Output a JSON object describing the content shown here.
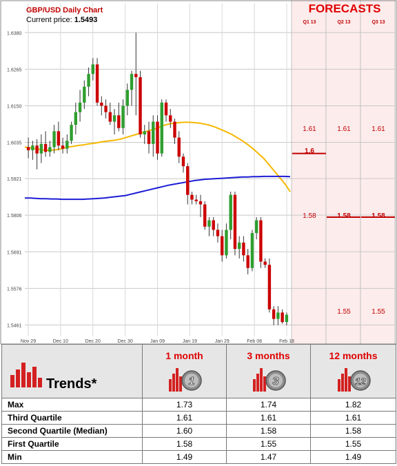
{
  "header": {
    "title": "GBP/USD Daily Chart",
    "current_price_label": "Current price:",
    "current_price_value": "1.5493"
  },
  "forecast_panel": {
    "title": "FORECASTS",
    "quarters": [
      "Q1 13",
      "Q2 13",
      "Q3 13"
    ],
    "levels": [
      {
        "quarter": "Q1 13",
        "third_quartile": "1.61",
        "median": "1.6",
        "first_quartile": "1.58",
        "min_label": ""
      },
      {
        "quarter": "Q2 13",
        "third_quartile": "1.61",
        "median": "1.58",
        "first_quartile": "",
        "min_label": "1.55"
      },
      {
        "quarter": "Q3 13",
        "third_quartile": "1.61",
        "median": "1.58",
        "first_quartile": "",
        "min_label": "1.55"
      }
    ]
  },
  "chart_data": {
    "type": "candlestick",
    "title": "GBP/USD Daily Chart",
    "y_ticks": [
      "1.6380",
      "1.6265",
      "1.6150",
      "1.6035",
      "1.5921",
      "1.5806",
      "1.5691",
      "1.5576",
      "1.5461"
    ],
    "ylim": [
      1.5425,
      1.6385
    ],
    "x_ticks": [
      "Nov 29",
      "Dec 10",
      "Dec 20",
      "Dec 30",
      "Jan 09",
      "Jan 19",
      "Jan 29",
      "Feb 08",
      "Feb 18"
    ],
    "grid": true,
    "colors": {
      "up": "#2e9e2e",
      "down": "#cc0000",
      "ma_short": "#f5b800",
      "ma_long": "#1b1bd6"
    },
    "candles": [
      {
        "o": 1.602,
        "h": 1.605,
        "l": 1.5985,
        "c": 1.601
      },
      {
        "o": 1.601,
        "h": 1.604,
        "l": 1.598,
        "c": 1.6025
      },
      {
        "o": 1.6025,
        "h": 1.6045,
        "l": 1.595,
        "c": 1.6
      },
      {
        "o": 1.6,
        "h": 1.606,
        "l": 1.597,
        "c": 1.603
      },
      {
        "o": 1.603,
        "h": 1.607,
        "l": 1.599,
        "c": 1.6005
      },
      {
        "o": 1.6005,
        "h": 1.604,
        "l": 1.599,
        "c": 1.602
      },
      {
        "o": 1.602,
        "h": 1.609,
        "l": 1.6,
        "c": 1.607
      },
      {
        "o": 1.607,
        "h": 1.61,
        "l": 1.601,
        "c": 1.6025
      },
      {
        "o": 1.6025,
        "h": 1.605,
        "l": 1.6,
        "c": 1.6015
      },
      {
        "o": 1.6015,
        "h": 1.606,
        "l": 1.6,
        "c": 1.604
      },
      {
        "o": 1.604,
        "h": 1.61,
        "l": 1.603,
        "c": 1.609
      },
      {
        "o": 1.609,
        "h": 1.616,
        "l": 1.606,
        "c": 1.613
      },
      {
        "o": 1.613,
        "h": 1.62,
        "l": 1.61,
        "c": 1.616
      },
      {
        "o": 1.616,
        "h": 1.623,
        "l": 1.614,
        "c": 1.621
      },
      {
        "o": 1.621,
        "h": 1.627,
        "l": 1.618,
        "c": 1.625
      },
      {
        "o": 1.625,
        "h": 1.63,
        "l": 1.623,
        "c": 1.628
      },
      {
        "o": 1.628,
        "h": 1.63,
        "l": 1.615,
        "c": 1.616
      },
      {
        "o": 1.616,
        "h": 1.618,
        "l": 1.612,
        "c": 1.615
      },
      {
        "o": 1.615,
        "h": 1.617,
        "l": 1.611,
        "c": 1.613
      },
      {
        "o": 1.613,
        "h": 1.616,
        "l": 1.609,
        "c": 1.61
      },
      {
        "o": 1.61,
        "h": 1.614,
        "l": 1.606,
        "c": 1.612
      },
      {
        "o": 1.612,
        "h": 1.616,
        "l": 1.607,
        "c": 1.608
      },
      {
        "o": 1.608,
        "h": 1.617,
        "l": 1.606,
        "c": 1.615
      },
      {
        "o": 1.615,
        "h": 1.622,
        "l": 1.612,
        "c": 1.62
      },
      {
        "o": 1.62,
        "h": 1.626,
        "l": 1.615,
        "c": 1.625
      },
      {
        "o": 1.625,
        "h": 1.638,
        "l": 1.612,
        "c": 1.624
      },
      {
        "o": 1.624,
        "h": 1.626,
        "l": 1.605,
        "c": 1.606
      },
      {
        "o": 1.606,
        "h": 1.609,
        "l": 1.603,
        "c": 1.607
      },
      {
        "o": 1.607,
        "h": 1.61,
        "l": 1.6,
        "c": 1.603
      },
      {
        "o": 1.603,
        "h": 1.612,
        "l": 1.599,
        "c": 1.61
      },
      {
        "o": 1.61,
        "h": 1.612,
        "l": 1.598,
        "c": 1.6
      },
      {
        "o": 1.6,
        "h": 1.617,
        "l": 1.599,
        "c": 1.616
      },
      {
        "o": 1.616,
        "h": 1.617,
        "l": 1.61,
        "c": 1.612
      },
      {
        "o": 1.612,
        "h": 1.614,
        "l": 1.608,
        "c": 1.61
      },
      {
        "o": 1.61,
        "h": 1.611,
        "l": 1.603,
        "c": 1.605
      },
      {
        "o": 1.605,
        "h": 1.607,
        "l": 1.597,
        "c": 1.599
      },
      {
        "o": 1.599,
        "h": 1.6,
        "l": 1.594,
        "c": 1.596
      },
      {
        "o": 1.596,
        "h": 1.597,
        "l": 1.584,
        "c": 1.587
      },
      {
        "o": 1.587,
        "h": 1.588,
        "l": 1.584,
        "c": 1.5855
      },
      {
        "o": 1.5855,
        "h": 1.587,
        "l": 1.584,
        "c": 1.585
      },
      {
        "o": 1.585,
        "h": 1.587,
        "l": 1.58,
        "c": 1.584
      },
      {
        "o": 1.584,
        "h": 1.585,
        "l": 1.576,
        "c": 1.577
      },
      {
        "o": 1.577,
        "h": 1.58,
        "l": 1.574,
        "c": 1.579
      },
      {
        "o": 1.579,
        "h": 1.58,
        "l": 1.574,
        "c": 1.576
      },
      {
        "o": 1.576,
        "h": 1.578,
        "l": 1.572,
        "c": 1.574
      },
      {
        "o": 1.574,
        "h": 1.576,
        "l": 1.566,
        "c": 1.568
      },
      {
        "o": 1.568,
        "h": 1.578,
        "l": 1.567,
        "c": 1.576
      },
      {
        "o": 1.576,
        "h": 1.588,
        "l": 1.573,
        "c": 1.587
      },
      {
        "o": 1.587,
        "h": 1.588,
        "l": 1.568,
        "c": 1.57
      },
      {
        "o": 1.57,
        "h": 1.574,
        "l": 1.567,
        "c": 1.572
      },
      {
        "o": 1.572,
        "h": 1.574,
        "l": 1.566,
        "c": 1.568
      },
      {
        "o": 1.568,
        "h": 1.57,
        "l": 1.562,
        "c": 1.564
      },
      {
        "o": 1.564,
        "h": 1.576,
        "l": 1.563,
        "c": 1.575
      },
      {
        "o": 1.575,
        "h": 1.58,
        "l": 1.573,
        "c": 1.579
      },
      {
        "o": 1.579,
        "h": 1.58,
        "l": 1.564,
        "c": 1.566
      },
      {
        "o": 1.566,
        "h": 1.567,
        "l": 1.564,
        "c": 1.565
      },
      {
        "o": 1.565,
        "h": 1.567,
        "l": 1.55,
        "c": 1.551
      },
      {
        "o": 1.551,
        "h": 1.552,
        "l": 1.546,
        "c": 1.548
      },
      {
        "o": 1.548,
        "h": 1.552,
        "l": 1.546,
        "c": 1.55
      },
      {
        "o": 1.55,
        "h": 1.551,
        "l": 1.5465,
        "c": 1.547
      },
      {
        "o": 1.547,
        "h": 1.55,
        "l": 1.546,
        "c": 1.5493
      }
    ],
    "ma_short": [
      1.602,
      1.6018,
      1.6015,
      1.6012,
      1.601,
      1.601,
      1.6012,
      1.6015,
      1.602,
      1.6022,
      1.6025,
      1.6027,
      1.603,
      1.6032,
      1.6035,
      1.6038,
      1.604,
      1.6042,
      1.6045,
      1.605,
      1.6055,
      1.606,
      1.6065,
      1.607,
      1.6075,
      1.608,
      1.6088,
      1.6092,
      1.6095,
      1.6097,
      1.6098,
      1.6098,
      1.6097,
      1.6095,
      1.6092,
      1.6088,
      1.6082,
      1.6075,
      1.6068,
      1.606,
      1.605,
      1.604,
      1.6028,
      1.6015,
      1.6,
      1.5985,
      1.5965,
      1.5945,
      1.5925,
      1.5905,
      1.588
    ],
    "ma_long": [
      1.586,
      1.586,
      1.5859,
      1.5858,
      1.5858,
      1.5857,
      1.5857,
      1.5856,
      1.5856,
      1.5856,
      1.5856,
      1.5856,
      1.5857,
      1.5858,
      1.5859,
      1.586,
      1.5862,
      1.5864,
      1.5866,
      1.5868,
      1.5872,
      1.5876,
      1.588,
      1.5884,
      1.5888,
      1.5892,
      1.5896,
      1.59,
      1.5903,
      1.5906,
      1.5909,
      1.5912,
      1.5915,
      1.5917,
      1.5919,
      1.592,
      1.5921,
      1.5922,
      1.5923,
      1.5924,
      1.5925,
      1.5926,
      1.5926,
      1.5927,
      1.5927,
      1.5928,
      1.5928,
      1.5928,
      1.5928,
      1.5928,
      1.5927
    ],
    "forecast_lines": [
      {
        "quarter": "Q1 13",
        "median": 1.6
      },
      {
        "quarter": "Q2 13",
        "median": 1.58
      },
      {
        "quarter": "Q3 13",
        "median": 1.58
      }
    ]
  },
  "trends": {
    "label": "Trends*",
    "periods": [
      {
        "label": "1 month",
        "icon_number": "1"
      },
      {
        "label": "3 months",
        "icon_number": "3"
      },
      {
        "label": "12 months",
        "icon_number": "12"
      }
    ],
    "rows": [
      {
        "label": "Max",
        "values": [
          "1.73",
          "1.74",
          "1.82"
        ]
      },
      {
        "label": "Third Quartile",
        "values": [
          "1.61",
          "1.61",
          "1.61"
        ]
      },
      {
        "label": "Second Quartile (Median)",
        "values": [
          "1.60",
          "1.58",
          "1.58"
        ]
      },
      {
        "label": "First Quartile",
        "values": [
          "1.58",
          "1.55",
          "1.55"
        ]
      },
      {
        "label": "Min",
        "values": [
          "1.49",
          "1.47",
          "1.49"
        ]
      }
    ]
  }
}
